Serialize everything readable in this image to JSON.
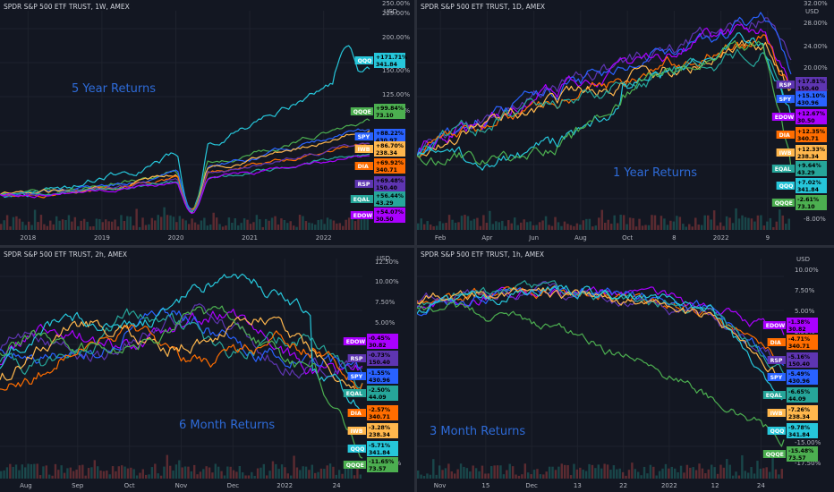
{
  "colors": {
    "background": "#131722",
    "grid": "#1e222d",
    "QQQ": "#26c6da",
    "QQQE": "#4caf50",
    "SPY": "#2962ff",
    "IWB": "#ffb74d",
    "DIA": "#ff6d00",
    "RSP": "#5e35b1",
    "EQAL": "#26a69a",
    "EDOW": "#aa00ff"
  },
  "chart_data": [
    {
      "type": "line",
      "header": "SPDR S&P 500 ETF TRUST, 1W, AMEX",
      "annotation": "5 Year Returns",
      "axis_unit": "USD",
      "x_ticks": [
        "2018",
        "2019",
        "2020",
        "2021",
        "2022"
      ],
      "y_ticks": [
        "250.00%",
        "225.00%",
        "200.00%",
        "150.00%",
        "125.00%",
        "100.00%"
      ],
      "series": [
        {
          "name": "QQQ",
          "pct": "+171.71%",
          "price": "341.84",
          "end": 171.7
        },
        {
          "name": "QQQE",
          "pct": "+99.84%",
          "price": "73.10",
          "end": 99.8
        },
        {
          "name": "SPY",
          "pct": "+88.22%",
          "price": "430.97",
          "end": 88.2
        },
        {
          "name": "IWB",
          "pct": "+86.70%",
          "price": "238.34",
          "end": 86.7
        },
        {
          "name": "DIA",
          "pct": "+69.92%",
          "price": "340.71",
          "end": 69.9
        },
        {
          "name": "RSP",
          "pct": "+69.48%",
          "price": "150.40",
          "end": 69.5
        },
        {
          "name": "EQAL",
          "pct": "+56.44%",
          "price": "43.29",
          "end": 56.4
        },
        {
          "name": "EDOW",
          "pct": "+54.07%",
          "price": "30.50",
          "end": 54.1
        }
      ]
    },
    {
      "type": "line",
      "header": "SPDR S&P 500 ETF TRUST, 1D, AMEX",
      "annotation": "1 Year Returns",
      "axis_unit": "USD",
      "x_ticks": [
        "Feb",
        "Apr",
        "Jun",
        "Aug",
        "Oct",
        "8",
        "2022",
        "9"
      ],
      "y_ticks": [
        "32.00%",
        "28.00%",
        "24.00%",
        "20.00%",
        "16.00%",
        "-4.00%",
        "-8.00%"
      ],
      "series": [
        {
          "name": "RSP",
          "pct": "+17.81%",
          "price": "150.40",
          "end": 17.8
        },
        {
          "name": "SPY",
          "pct": "+15.10%",
          "price": "430.96",
          "end": 15.1
        },
        {
          "name": "EDOW",
          "pct": "+12.67%",
          "price": "30.50",
          "end": 12.7
        },
        {
          "name": "DIA",
          "pct": "+12.35%",
          "price": "340.71",
          "end": 12.4
        },
        {
          "name": "IWB",
          "pct": "+12.33%",
          "price": "238.34",
          "end": 12.3
        },
        {
          "name": "EQAL",
          "pct": "+9.64%",
          "price": "43.29",
          "end": 9.6
        },
        {
          "name": "QQQ",
          "pct": "+7.02%",
          "price": "341.84",
          "end": 7.0
        },
        {
          "name": "QQQE",
          "pct": "-2.61%",
          "price": "73.10",
          "end": -2.6
        }
      ]
    },
    {
      "type": "line",
      "header": "SPDR S&P 500 ETF TRUST, 2h, AMEX",
      "annotation": "6 Month Returns",
      "axis_unit": "USD",
      "x_ticks": [
        "Aug",
        "Sep",
        "Oct",
        "Nov",
        "Dec",
        "2022",
        "24"
      ],
      "y_ticks": [
        "12.50%",
        "10.00%",
        "7.50%",
        "5.00%",
        "-15.00%"
      ],
      "series": [
        {
          "name": "EDOW",
          "pct": "-0.45%",
          "price": "30.82",
          "end": -0.45
        },
        {
          "name": "RSP",
          "pct": "-0.73%",
          "price": "150.40",
          "end": -0.73
        },
        {
          "name": "SPY",
          "pct": "-1.55%",
          "price": "430.96",
          "end": -1.55
        },
        {
          "name": "EQAL",
          "pct": "-2.50%",
          "price": "44.09",
          "end": -2.5
        },
        {
          "name": "DIA",
          "pct": "-2.57%",
          "price": "340.71",
          "end": -2.57
        },
        {
          "name": "IWB",
          "pct": "-3.28%",
          "price": "238.34",
          "end": -3.28
        },
        {
          "name": "QQQ",
          "pct": "-5.71%",
          "price": "341.84",
          "end": -5.71
        },
        {
          "name": "QQQE",
          "pct": "-11.65%",
          "price": "73.57",
          "end": -11.65
        }
      ]
    },
    {
      "type": "line",
      "header": "SPDR S&P 500 ETF TRUST, 1h, AMEX",
      "annotation": "3 Month Returns",
      "axis_unit": "USD",
      "x_ticks": [
        "Nov",
        "15",
        "Dec",
        "13",
        "22",
        "2022",
        "12",
        "24"
      ],
      "y_ticks": [
        "10.00%",
        "7.50%",
        "5.00%",
        "2.50%",
        "-15.00%",
        "-17.50%"
      ],
      "series": [
        {
          "name": "EDOW",
          "pct": "-1.38%",
          "price": "30.82",
          "end": -1.38
        },
        {
          "name": "DIA",
          "pct": "-4.71%",
          "price": "340.71",
          "end": -4.71
        },
        {
          "name": "RSP",
          "pct": "-5.16%",
          "price": "150.40",
          "end": -5.16
        },
        {
          "name": "SPY",
          "pct": "-5.49%",
          "price": "430.96",
          "end": -5.49
        },
        {
          "name": "EQAL",
          "pct": "-6.65%",
          "price": "44.09",
          "end": -6.65
        },
        {
          "name": "IWB",
          "pct": "-7.26%",
          "price": "238.34",
          "end": -7.26
        },
        {
          "name": "QQQ",
          "pct": "-9.78%",
          "price": "341.84",
          "end": -9.78
        },
        {
          "name": "QQQE",
          "pct": "-15.48%",
          "price": "73.57",
          "end": -15.48
        }
      ]
    }
  ]
}
